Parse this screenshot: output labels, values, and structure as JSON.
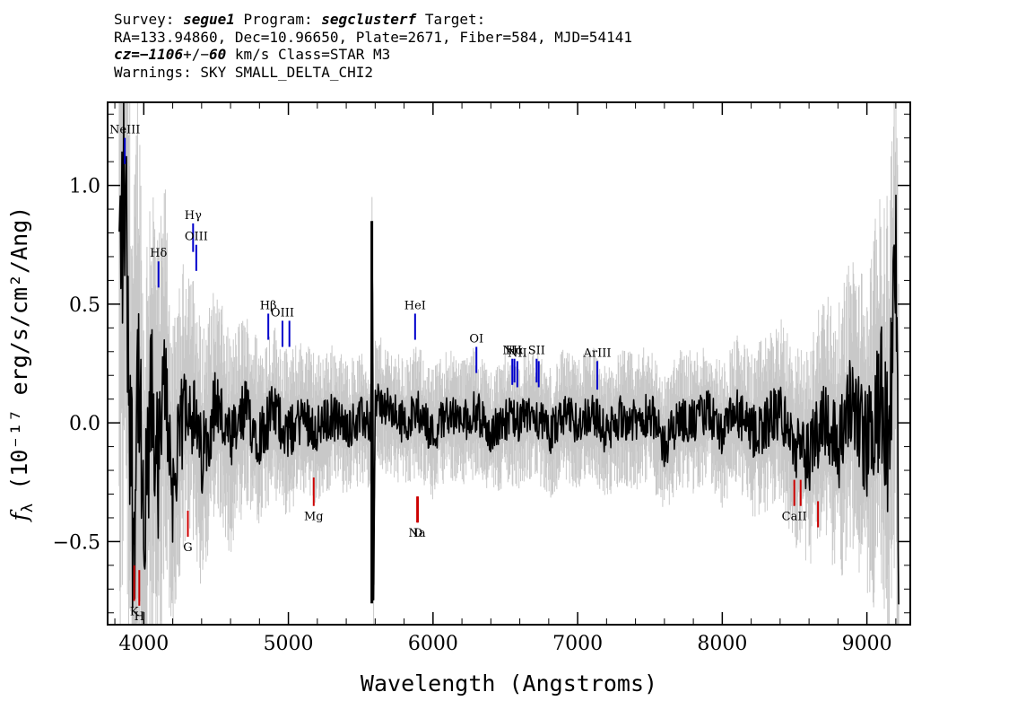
{
  "header": {
    "survey_label": "Survey:",
    "survey": "segue1",
    "program_label": "Program:",
    "program": "segclusterf",
    "target_label": "Target:",
    "line2": "RA=133.94860, Dec=10.96650, Plate=2671, Fiber=584, MJD=54141",
    "cz_label": "cz=",
    "cz_value": "−1106",
    "cz_sep": "+/−",
    "cz_err": "60",
    "cz_rest": " km/s Class=STAR M3",
    "warnings": "Warnings: SKY SMALL_DELTA_CHI2"
  },
  "chart_data": {
    "type": "line",
    "title": "",
    "xlabel": "Wavelength (Angstroms)",
    "ylabel": "fλ (10⁻¹⁷ erg/s/cm²/Ang)",
    "ylabel_prefix": "f",
    "ylabel_sub": "λ",
    "ylabel_rest": " (10⁻¹⁷ erg/s/cm²/Ang)",
    "xlim": [
      3750,
      9300
    ],
    "ylim": [
      -0.85,
      1.35
    ],
    "x_ticks": [
      4000,
      5000,
      6000,
      7000,
      8000,
      9000
    ],
    "x_tick_labels": [
      "4000",
      "5000",
      "6000",
      "7000",
      "8000",
      "9000"
    ],
    "y_ticks": [
      -0.5,
      0.0,
      0.5,
      1.0
    ],
    "y_tick_labels": [
      "−0.5",
      "0.0",
      "0.5",
      "1.0"
    ],
    "grid": false,
    "series": [
      {
        "role": "flux",
        "color": "#000000",
        "x": [
          3830,
          3870,
          3900,
          3930,
          3960,
          4000,
          4050,
          4100,
          4150,
          4200,
          4300,
          4400,
          4500,
          4600,
          4700,
          4800,
          4900,
          5000,
          5100,
          5200,
          5300,
          5400,
          5500,
          5570,
          5580,
          5590,
          5600,
          5700,
          5800,
          5900,
          6000,
          6100,
          6200,
          6300,
          6400,
          6500,
          6600,
          6700,
          6800,
          6900,
          7000,
          7100,
          7200,
          7300,
          7400,
          7500,
          7600,
          7700,
          7800,
          7900,
          8000,
          8100,
          8200,
          8300,
          8400,
          8500,
          8600,
          8700,
          8800,
          8900,
          9000,
          9100,
          9150,
          9200,
          9220
        ],
        "y": [
          0.65,
          1.0,
          0.2,
          -0.5,
          0.3,
          -0.6,
          0.1,
          -0.2,
          0.2,
          -0.3,
          0.15,
          -0.15,
          0.1,
          -0.1,
          0.05,
          -0.05,
          0.05,
          -0.05,
          0.03,
          -0.03,
          0.03,
          -0.02,
          0.02,
          0.0,
          0.85,
          -0.75,
          0.1,
          0.05,
          0.0,
          0.05,
          -0.05,
          0.05,
          0.0,
          0.05,
          -0.05,
          0.02,
          0.0,
          0.05,
          -0.05,
          0.03,
          0.0,
          0.05,
          -0.05,
          0.03,
          0.0,
          0.05,
          -0.1,
          0.02,
          0.0,
          0.05,
          -0.05,
          0.05,
          -0.05,
          0.0,
          0.05,
          -0.1,
          -0.15,
          0.05,
          -0.1,
          0.1,
          -0.1,
          0.1,
          -0.15,
          0.7,
          -0.5
        ]
      },
      {
        "role": "uncertainty",
        "color": "#c8c8c8",
        "x": [
          3830,
          3900,
          4000,
          4200,
          4500,
          5000,
          5500,
          6000,
          7000,
          8000,
          8500,
          9000,
          9220
        ],
        "y": [
          1.3,
          1.1,
          0.9,
          0.5,
          0.35,
          0.25,
          0.2,
          0.2,
          0.2,
          0.22,
          0.3,
          0.5,
          0.9
        ]
      }
    ],
    "line_markers": [
      {
        "label": "NeIII",
        "x": 3869,
        "y_low": 1.09,
        "y_high": 1.2,
        "color": "#0000cc"
      },
      {
        "label": "Hδ",
        "x": 4102,
        "y_low": 0.57,
        "y_high": 0.68,
        "color": "#0000cc"
      },
      {
        "label": "Hγ",
        "x": 4341,
        "y_low": 0.72,
        "y_high": 0.84,
        "color": "#0000cc"
      },
      {
        "label": "OIII",
        "x": 4363,
        "y_low": 0.64,
        "y_high": 0.75,
        "color": "#0000cc"
      },
      {
        "label": "Hβ",
        "x": 4861,
        "y_low": 0.35,
        "y_high": 0.46,
        "color": "#0000cc"
      },
      {
        "label": "OIII",
        "x": 4959,
        "y_low": 0.32,
        "y_high": 0.43,
        "color": "#0000cc"
      },
      {
        "label": "",
        "x": 5007,
        "y_low": 0.32,
        "y_high": 0.43,
        "color": "#0000cc"
      },
      {
        "label": "HeI",
        "x": 5876,
        "y_low": 0.35,
        "y_high": 0.46,
        "color": "#0000cc"
      },
      {
        "label": "OI",
        "x": 6300,
        "y_low": 0.21,
        "y_high": 0.32,
        "color": "#0000cc"
      },
      {
        "label": "NII",
        "x": 6548,
        "y_low": 0.16,
        "y_high": 0.27,
        "color": "#0000cc"
      },
      {
        "label": "Hα",
        "x": 6563,
        "y_low": 0.17,
        "y_high": 0.27,
        "color": "#0000cc"
      },
      {
        "label": "NII",
        "x": 6583,
        "y_low": 0.15,
        "y_high": 0.26,
        "color": "#0000cc"
      },
      {
        "label": "SII",
        "x": 6716,
        "y_low": 0.17,
        "y_high": 0.27,
        "color": "#0000cc"
      },
      {
        "label": "",
        "x": 6731,
        "y_low": 0.15,
        "y_high": 0.26,
        "color": "#0000cc"
      },
      {
        "label": "ArIII",
        "x": 7136,
        "y_low": 0.14,
        "y_high": 0.26,
        "color": "#0000cc"
      },
      {
        "label": "K",
        "x": 3934,
        "y_low": -0.75,
        "y_high": -0.6,
        "color": "#cc0000"
      },
      {
        "label": "H",
        "x": 3969,
        "y_low": -0.77,
        "y_high": -0.62,
        "color": "#cc0000"
      },
      {
        "label": "G",
        "x": 4305,
        "y_low": -0.48,
        "y_high": -0.37,
        "color": "#cc0000"
      },
      {
        "label": "Mg",
        "x": 5175,
        "y_low": -0.35,
        "y_high": -0.23,
        "color": "#cc0000"
      },
      {
        "label": "Na",
        "x": 5890,
        "y_low": -0.42,
        "y_high": -0.31,
        "color": "#cc0000"
      },
      {
        "label": "D",
        "x": 5896,
        "y_low": -0.42,
        "y_high": -0.31,
        "color": "#cc0000"
      },
      {
        "label": "CaII",
        "x": 8498,
        "y_low": -0.35,
        "y_high": -0.24,
        "color": "#cc0000"
      },
      {
        "label": "",
        "x": 8542,
        "y_low": -0.35,
        "y_high": -0.24,
        "color": "#cc0000"
      },
      {
        "label": "",
        "x": 8662,
        "y_low": -0.44,
        "y_high": -0.33,
        "color": "#cc0000"
      }
    ]
  }
}
